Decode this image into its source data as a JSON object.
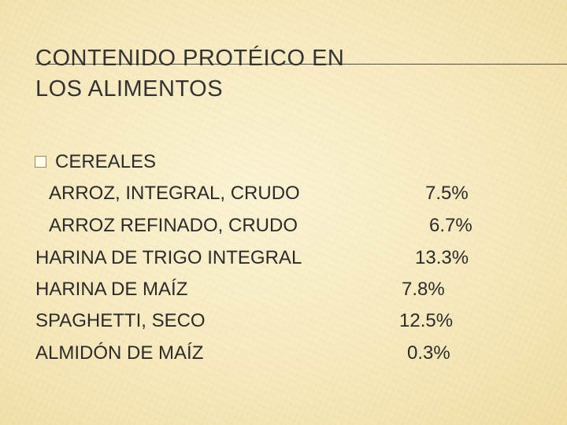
{
  "slide": {
    "title": "CONTENIDO PROTÉICO EN LOS ALIMENTOS",
    "section_heading": "CEREALES",
    "items": [
      {
        "name": "ARROZ, INTEGRAL, CRUDO",
        "value": "7.5%"
      },
      {
        "name": "ARROZ REFINADO, CRUDO",
        "value": "6.7%"
      },
      {
        "name": "HARINA DE TRIGO INTEGRAL",
        "value": "13.3%"
      },
      {
        "name": "HARINA DE MAÍZ",
        "value": "7.8%"
      },
      {
        "name": "SPAGHETTI, SECO",
        "value": "12.5%"
      },
      {
        "name": "ALMIDÓN DE MAÍZ",
        "value": "0.3%"
      }
    ],
    "bullet_icon": "square-bullet-icon"
  }
}
